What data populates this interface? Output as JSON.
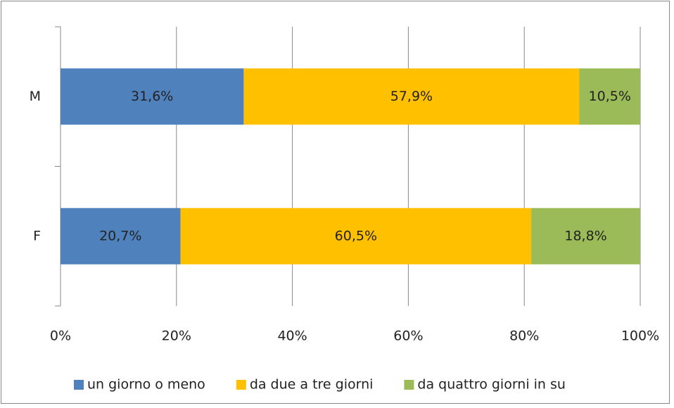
{
  "chart_data": {
    "type": "stacked-bar-horizontal",
    "categories": [
      "M",
      "F"
    ],
    "series": [
      {
        "name": "un giorno o meno",
        "color": "#4f81bd",
        "values": [
          31.6,
          20.7
        ],
        "value_labels": [
          "31,6%",
          "20,7%"
        ]
      },
      {
        "name": "da due a tre giorni",
        "color": "#ffc000",
        "values": [
          57.9,
          60.5
        ],
        "value_labels": [
          "57,9%",
          "60,5%"
        ]
      },
      {
        "name": "da quattro giorni in su",
        "color": "#9bbb59",
        "values": [
          10.5,
          18.8
        ],
        "value_labels": [
          "10,5%",
          "18,8%"
        ]
      }
    ],
    "xlim": [
      0,
      100
    ],
    "xticks": [
      {
        "value": 0,
        "label": "0%"
      },
      {
        "value": 20,
        "label": "20%"
      },
      {
        "value": 40,
        "label": "40%"
      },
      {
        "value": 60,
        "label": "60%"
      },
      {
        "value": 80,
        "label": "80%"
      },
      {
        "value": 100,
        "label": "100%"
      }
    ],
    "grid": true,
    "legend": "bottom"
  }
}
